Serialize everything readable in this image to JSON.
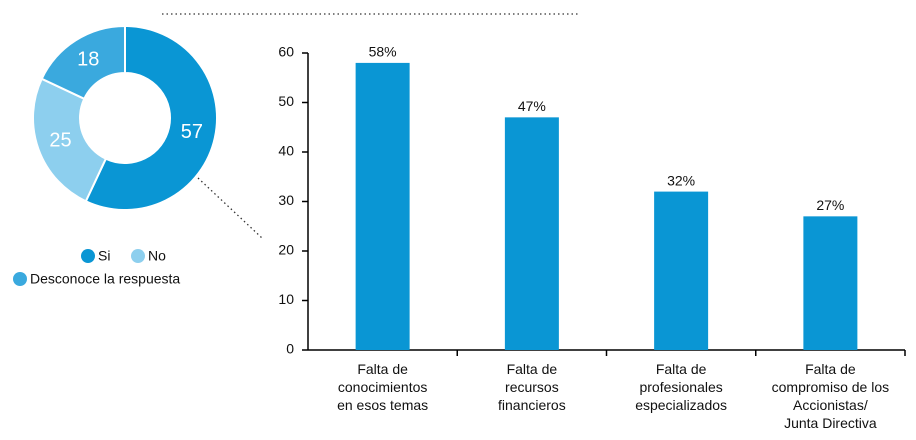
{
  "chart_data": [
    {
      "type": "donut",
      "categories": [
        "Si",
        "No",
        "Desconoce la respuesta"
      ],
      "values": [
        57,
        25,
        18
      ],
      "colors": [
        "#0a96d4",
        "#8dcfee",
        "#3aa9de"
      ]
    },
    {
      "type": "bar",
      "categories": [
        "Falta de\nconocimientos\nen esos temas",
        "Falta de\nrecursos\nfinancieros",
        "Falta de\nprofesionales\nespecializados",
        "Falta de\ncompromiso de los\nAccionistas/\nJunta Directiva"
      ],
      "values": [
        58,
        47,
        32,
        27
      ],
      "value_labels": [
        "58%",
        "47%",
        "32%",
        "27%"
      ],
      "color": "#0a96d4",
      "ylim": [
        0,
        60
      ],
      "yticks": [
        0,
        10,
        20,
        30,
        40,
        50,
        60
      ]
    }
  ]
}
